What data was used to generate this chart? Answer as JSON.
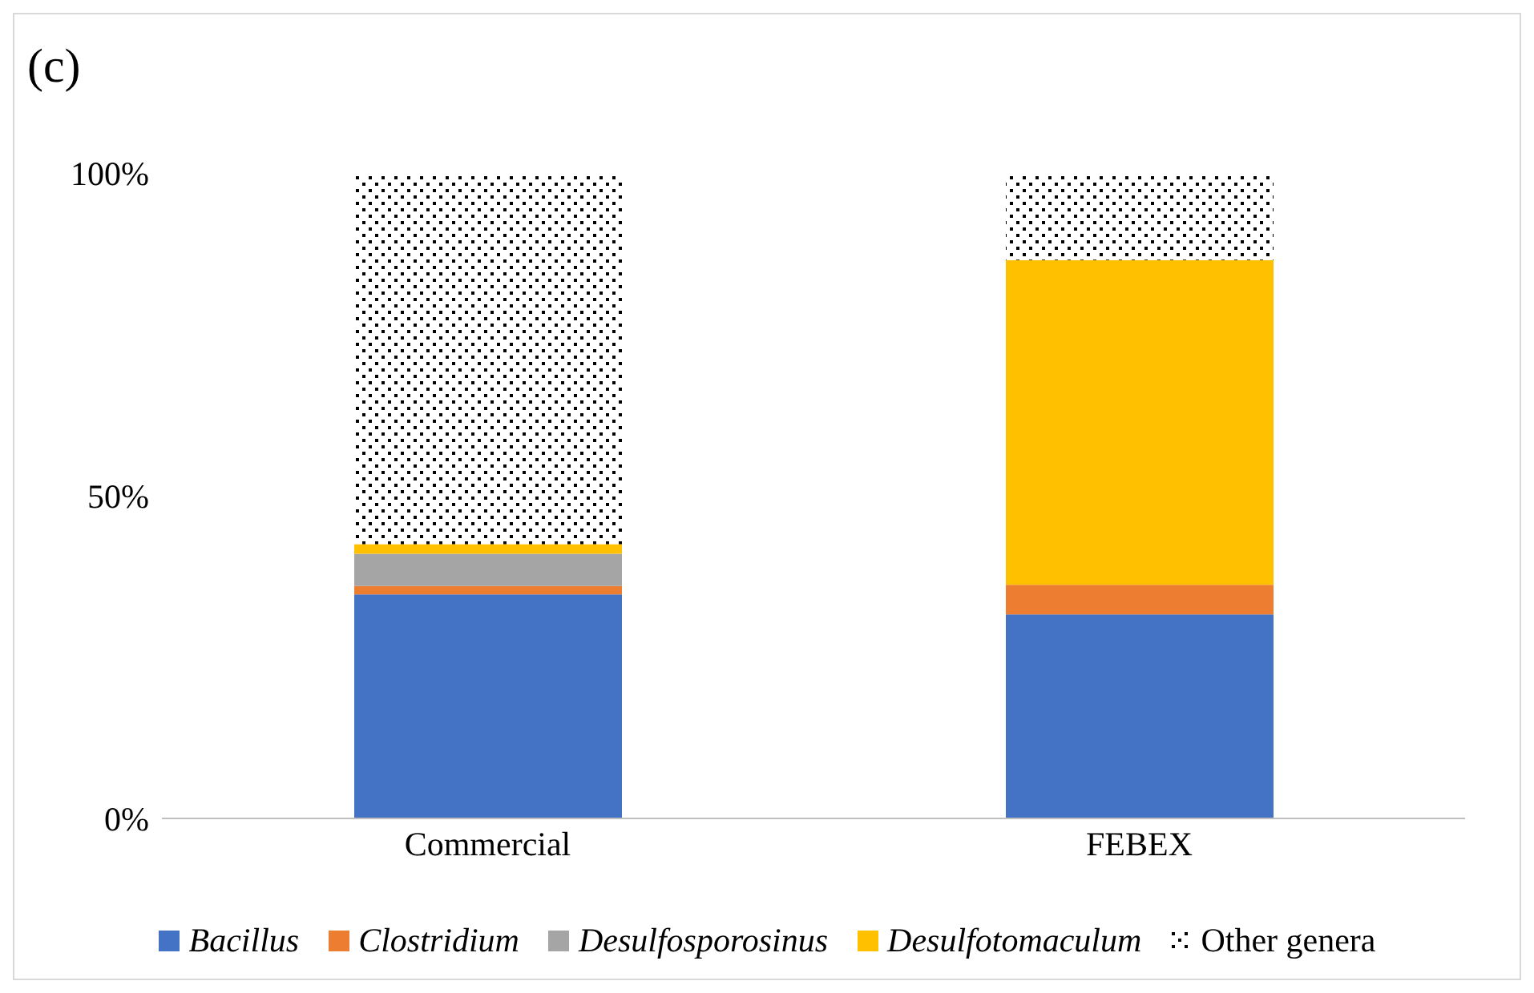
{
  "chart_data": {
    "type": "bar",
    "title": "(c)",
    "categories": [
      "Commercial",
      "FEBEX"
    ],
    "stacked": true,
    "series": [
      {
        "name": "Bacillus",
        "color": "#4472c4",
        "values": [
          34.7,
          31.6
        ]
      },
      {
        "name": "Clostridium",
        "color": "#ed7d31",
        "values": [
          1.3,
          4.6
        ]
      },
      {
        "name": "Desulfosporosinus",
        "color": "#a5a5a5",
        "values": [
          5.0,
          0
        ]
      },
      {
        "name": "Desulfotomaculum",
        "color": "#ffc000",
        "values": [
          1.5,
          50.3
        ]
      },
      {
        "name": "Other genera",
        "color": "#000000",
        "values": [
          57.5,
          13.5
        ]
      }
    ],
    "ylim": [
      0,
      100
    ],
    "yticks": [
      {
        "value": 0,
        "label": "0%"
      },
      {
        "value": 50,
        "label": "50%"
      },
      {
        "value": 100,
        "label": "100%"
      }
    ],
    "grid": false,
    "legend": "bottom"
  }
}
